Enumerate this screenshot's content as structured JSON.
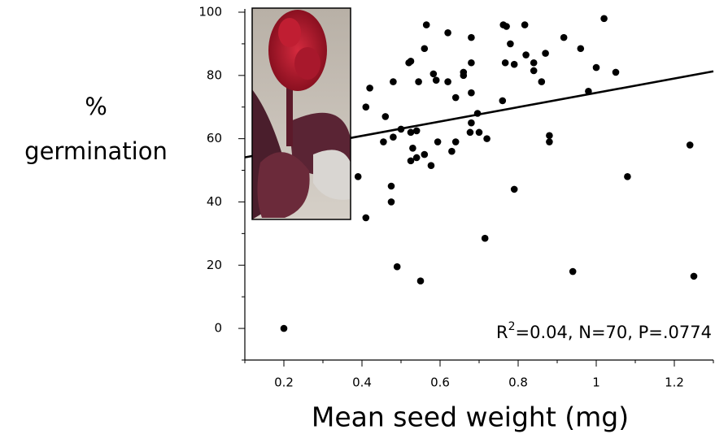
{
  "chart_data": {
    "type": "scatter",
    "xlabel": "Mean seed weight (mg)",
    "ylabel": [
      "%",
      "germination"
    ],
    "annotation": [
      "R",
      "2",
      "=0.04, N=70, P=.0774"
    ],
    "color": "#000000",
    "xlim": [
      0.1,
      1.3
    ],
    "xticks": [
      0.2,
      0.4,
      0.6,
      0.8,
      {
        "value": 1.0,
        "label": "1"
      },
      1.2
    ],
    "ylim": [
      -10,
      100
    ],
    "yticks": [
      0,
      20,
      40,
      60,
      80,
      100
    ],
    "grid": false,
    "x": [
      0.2,
      0.39,
      0.41,
      0.41,
      0.42,
      0.455,
      0.46,
      0.475,
      0.475,
      0.48,
      0.48,
      0.49,
      0.5,
      0.52,
      0.525,
      0.525,
      0.525,
      0.53,
      0.54,
      0.54,
      0.545,
      0.55,
      0.56,
      0.56,
      0.565,
      0.577,
      0.583,
      0.59,
      0.594,
      0.62,
      0.62,
      0.63,
      0.64,
      0.64,
      0.66,
      0.66,
      0.677,
      0.68,
      0.68,
      0.68,
      0.68,
      0.696,
      0.7,
      0.715,
      0.72,
      0.76,
      0.762,
      0.77,
      0.767,
      0.78,
      0.79,
      0.79,
      0.817,
      0.82,
      0.84,
      0.84,
      0.86,
      0.87,
      0.88,
      0.88,
      0.917,
      0.94,
      0.96,
      0.98,
      1.0,
      1.02,
      1.05,
      1.08,
      1.24,
      1.25
    ],
    "values": [
      0,
      48,
      35,
      70,
      76,
      59,
      67,
      45,
      40,
      78,
      60.5,
      19.5,
      63,
      84,
      84.5,
      62,
      53,
      57,
      62.5,
      54,
      78,
      15,
      55,
      88.5,
      96,
      51.5,
      80.5,
      78.5,
      59,
      93.5,
      78,
      56,
      59,
      73,
      81,
      80,
      62,
      65,
      74.5,
      92,
      84,
      68,
      62,
      28.5,
      60,
      72,
      96,
      95.5,
      84,
      90,
      44,
      83.5,
      96,
      86.5,
      84,
      81.5,
      78,
      87,
      61,
      59,
      92,
      18,
      88.5,
      75,
      82.5,
      98,
      81,
      48,
      58,
      16.5
    ],
    "trendline": {
      "x": [
        0.1,
        1.3
      ],
      "values": [
        54.1,
        81.3
      ]
    }
  }
}
